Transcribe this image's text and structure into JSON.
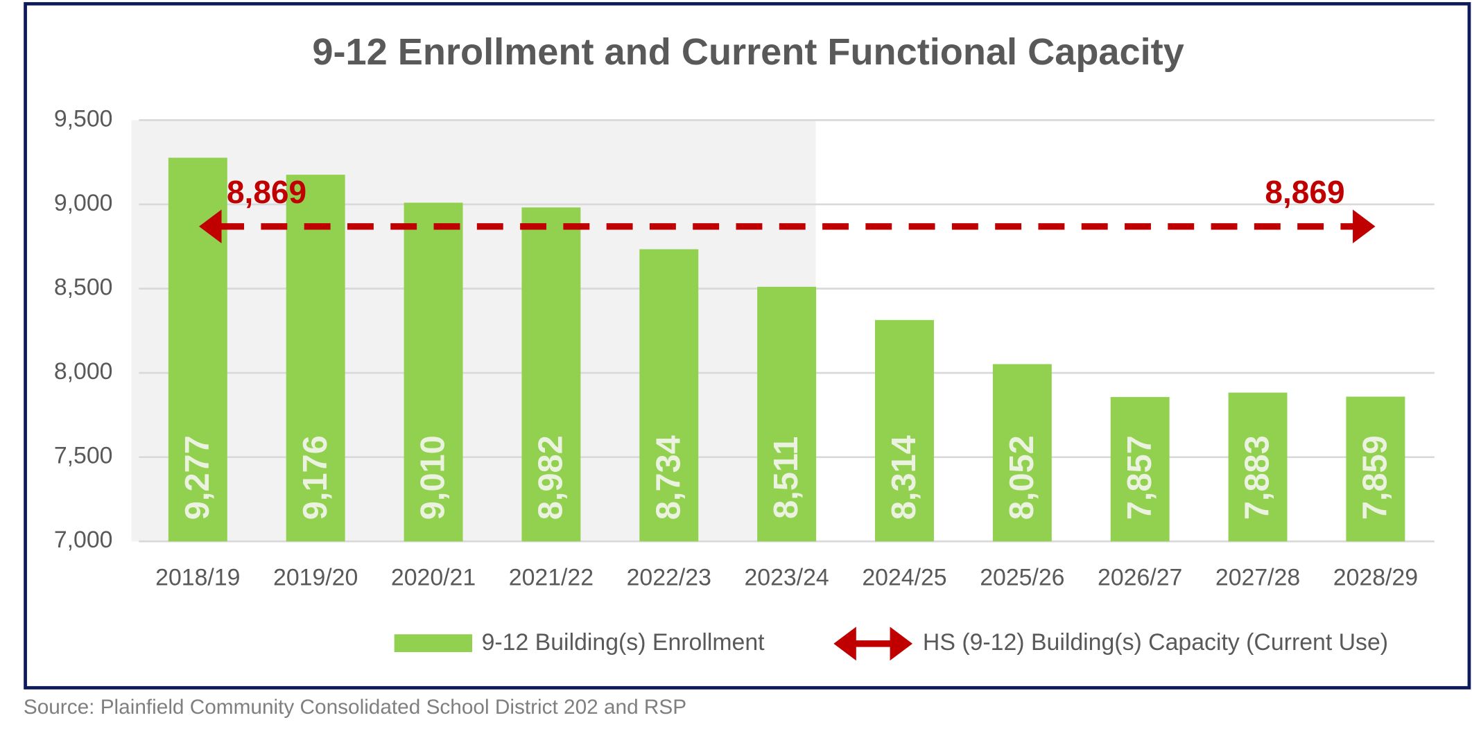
{
  "chart_data": {
    "type": "bar",
    "title": "9-12 Enrollment and Current Functional Capacity",
    "categories": [
      "2018/19",
      "2019/20",
      "2020/21",
      "2021/22",
      "2022/23",
      "2023/24",
      "2024/25",
      "2025/26",
      "2026/27",
      "2027/28",
      "2028/29"
    ],
    "series": [
      {
        "name": "9-12 Building(s) Enrollment",
        "color": "#92d050",
        "values": [
          9277,
          9176,
          9010,
          8982,
          8734,
          8511,
          8314,
          8052,
          7857,
          7883,
          7859
        ],
        "value_labels": [
          "9,277",
          "9,176",
          "9,010",
          "8,982",
          "8,734",
          "8,511",
          "8,314",
          "8,052",
          "7,857",
          "7,883",
          "7,859"
        ]
      }
    ],
    "capacity": {
      "name": "HS (9-12) Building(s) Capacity (Current Use)",
      "color": "#c00000",
      "value": 8869,
      "value_label": "8,869"
    },
    "ylim": [
      7000,
      9500
    ],
    "yticks": [
      {
        "value": 7000,
        "label": "7,000"
      },
      {
        "value": 7500,
        "label": "7,500"
      },
      {
        "value": 8000,
        "label": "8,000"
      },
      {
        "value": 8500,
        "label": "8,500"
      },
      {
        "value": 9000,
        "label": "9,000"
      },
      {
        "value": 9500,
        "label": "9,500"
      }
    ],
    "grid": true,
    "source": "Source: Plainfield Community Consolidated School District 202 and RSP"
  }
}
